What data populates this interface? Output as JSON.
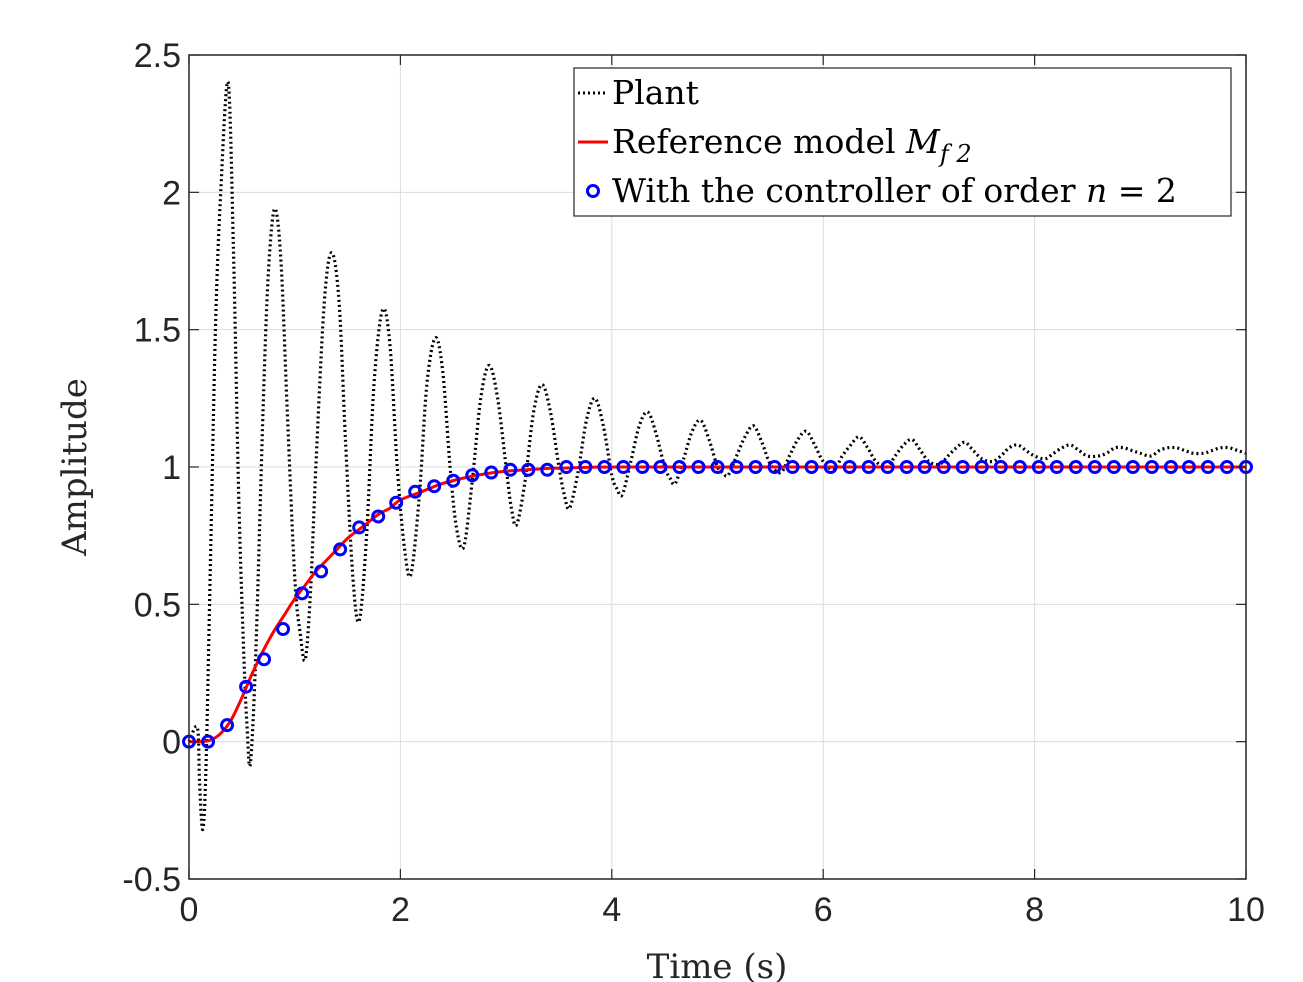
{
  "chart_data": {
    "type": "line",
    "title": "",
    "xlabel": "Time (s)",
    "ylabel": "Amplitude",
    "xlim": [
      0,
      10
    ],
    "ylim": [
      -0.5,
      2.5
    ],
    "xticks": [
      0,
      2,
      4,
      6,
      8,
      10
    ],
    "xtick_labels": [
      "0",
      "2",
      "4",
      "6",
      "8",
      "10"
    ],
    "yticks": [
      -0.5,
      0,
      0.5,
      1,
      1.5,
      2,
      2.5
    ],
    "ytick_labels": [
      "-0.5",
      "0",
      "0.5",
      "1",
      "1.5",
      "2",
      "2.5"
    ],
    "grid": true,
    "legend_position": "top-right",
    "series": [
      {
        "name": "Plant",
        "style": "dotted",
        "color": "#000000",
        "points": [
          [
            0,
            0
          ],
          [
            0.08,
            0.05
          ],
          [
            0.1,
            -0.15
          ],
          [
            0.13,
            -0.32
          ],
          [
            0.16,
            -0.1
          ],
          [
            0.2,
            0.6
          ],
          [
            0.25,
            1.5
          ],
          [
            0.3,
            2.0
          ],
          [
            0.37,
            2.4
          ],
          [
            0.42,
            1.8
          ],
          [
            0.47,
            0.9
          ],
          [
            0.52,
            0.3
          ],
          [
            0.55,
            0.05
          ],
          [
            0.58,
            -0.08
          ],
          [
            0.63,
            0.3
          ],
          [
            0.7,
            1.2
          ],
          [
            0.75,
            1.7
          ],
          [
            0.81,
            1.94
          ],
          [
            0.87,
            1.75
          ],
          [
            0.93,
            1.2
          ],
          [
            1.0,
            0.6
          ],
          [
            1.05,
            0.4
          ],
          [
            1.1,
            0.3
          ],
          [
            1.15,
            0.55
          ],
          [
            1.2,
            1.0
          ],
          [
            1.28,
            1.6
          ],
          [
            1.35,
            1.78
          ],
          [
            1.42,
            1.6
          ],
          [
            1.48,
            1.1
          ],
          [
            1.55,
            0.6
          ],
          [
            1.61,
            0.44
          ],
          [
            1.68,
            0.75
          ],
          [
            1.75,
            1.3
          ],
          [
            1.83,
            1.57
          ],
          [
            1.9,
            1.45
          ],
          [
            1.97,
            1.0
          ],
          [
            2.04,
            0.7
          ],
          [
            2.1,
            0.61
          ],
          [
            2.18,
            0.9
          ],
          [
            2.25,
            1.3
          ],
          [
            2.33,
            1.47
          ],
          [
            2.4,
            1.35
          ],
          [
            2.47,
            1.0
          ],
          [
            2.53,
            0.78
          ],
          [
            2.6,
            0.71
          ],
          [
            2.68,
            0.95
          ],
          [
            2.76,
            1.25
          ],
          [
            2.84,
            1.37
          ],
          [
            2.92,
            1.25
          ],
          [
            3.0,
            1.0
          ],
          [
            3.05,
            0.85
          ],
          [
            3.1,
            0.79
          ],
          [
            3.18,
            0.95
          ],
          [
            3.26,
            1.2
          ],
          [
            3.34,
            1.3
          ],
          [
            3.42,
            1.2
          ],
          [
            3.5,
            1.0
          ],
          [
            3.55,
            0.9
          ],
          [
            3.6,
            0.85
          ],
          [
            3.68,
            0.98
          ],
          [
            3.76,
            1.17
          ],
          [
            3.84,
            1.25
          ],
          [
            3.92,
            1.15
          ],
          [
            4.0,
            0.97
          ],
          [
            4.05,
            0.92
          ],
          [
            4.1,
            0.9
          ],
          [
            4.18,
            1.02
          ],
          [
            4.26,
            1.15
          ],
          [
            4.34,
            1.2
          ],
          [
            4.42,
            1.12
          ],
          [
            4.5,
            1.0
          ],
          [
            4.55,
            0.96
          ],
          [
            4.6,
            0.94
          ],
          [
            4.68,
            1.03
          ],
          [
            4.76,
            1.13
          ],
          [
            4.84,
            1.17
          ],
          [
            4.92,
            1.1
          ],
          [
            5.0,
            1.0
          ],
          [
            5.05,
            0.98
          ],
          [
            5.1,
            0.97
          ],
          [
            5.18,
            1.04
          ],
          [
            5.26,
            1.11
          ],
          [
            5.34,
            1.15
          ],
          [
            5.42,
            1.09
          ],
          [
            5.5,
            1.01
          ],
          [
            5.6,
            0.98
          ],
          [
            5.68,
            1.04
          ],
          [
            5.76,
            1.1
          ],
          [
            5.84,
            1.13
          ],
          [
            5.92,
            1.08
          ],
          [
            6.0,
            1.02
          ],
          [
            6.1,
            0.99
          ],
          [
            6.18,
            1.04
          ],
          [
            6.26,
            1.08
          ],
          [
            6.34,
            1.11
          ],
          [
            6.42,
            1.07
          ],
          [
            6.5,
            1.02
          ],
          [
            6.6,
            1.0
          ],
          [
            6.68,
            1.04
          ],
          [
            6.76,
            1.08
          ],
          [
            6.84,
            1.1
          ],
          [
            6.92,
            1.06
          ],
          [
            7.0,
            1.02
          ],
          [
            7.1,
            1.01
          ],
          [
            7.18,
            1.04
          ],
          [
            7.26,
            1.07
          ],
          [
            7.34,
            1.09
          ],
          [
            7.42,
            1.06
          ],
          [
            7.5,
            1.03
          ],
          [
            7.6,
            1.02
          ],
          [
            7.68,
            1.04
          ],
          [
            7.76,
            1.07
          ],
          [
            7.84,
            1.08
          ],
          [
            7.92,
            1.06
          ],
          [
            8.0,
            1.04
          ],
          [
            8.1,
            1.03
          ],
          [
            8.18,
            1.05
          ],
          [
            8.26,
            1.07
          ],
          [
            8.34,
            1.08
          ],
          [
            8.42,
            1.06
          ],
          [
            8.5,
            1.04
          ],
          [
            8.6,
            1.04
          ],
          [
            8.68,
            1.05
          ],
          [
            8.76,
            1.07
          ],
          [
            8.84,
            1.07
          ],
          [
            8.92,
            1.06
          ],
          [
            9.0,
            1.05
          ],
          [
            9.1,
            1.04
          ],
          [
            9.18,
            1.06
          ],
          [
            9.26,
            1.07
          ],
          [
            9.34,
            1.07
          ],
          [
            9.42,
            1.06
          ],
          [
            9.5,
            1.05
          ],
          [
            9.6,
            1.05
          ],
          [
            9.68,
            1.06
          ],
          [
            9.76,
            1.07
          ],
          [
            9.84,
            1.07
          ],
          [
            9.92,
            1.06
          ],
          [
            10.0,
            1.05
          ]
        ]
      },
      {
        "name": "Reference model M_{f2}",
        "style": "solid",
        "color": "#ff0000",
        "points": [
          [
            0,
            0
          ],
          [
            0.1,
            0.0
          ],
          [
            0.2,
            0.005
          ],
          [
            0.3,
            0.03
          ],
          [
            0.4,
            0.08
          ],
          [
            0.5,
            0.16
          ],
          [
            0.6,
            0.25
          ],
          [
            0.7,
            0.33
          ],
          [
            0.8,
            0.4
          ],
          [
            0.9,
            0.46
          ],
          [
            1.0,
            0.52
          ],
          [
            1.1,
            0.57
          ],
          [
            1.2,
            0.62
          ],
          [
            1.3,
            0.66
          ],
          [
            1.4,
            0.7
          ],
          [
            1.5,
            0.74
          ],
          [
            1.6,
            0.77
          ],
          [
            1.7,
            0.8
          ],
          [
            1.8,
            0.83
          ],
          [
            1.9,
            0.85
          ],
          [
            2.0,
            0.88
          ],
          [
            2.2,
            0.91
          ],
          [
            2.4,
            0.94
          ],
          [
            2.6,
            0.96
          ],
          [
            2.8,
            0.975
          ],
          [
            3.0,
            0.985
          ],
          [
            3.2,
            0.99
          ],
          [
            3.4,
            0.995
          ],
          [
            3.6,
            0.997
          ],
          [
            3.8,
            0.999
          ],
          [
            4.0,
            1.0
          ],
          [
            5.0,
            1.0
          ],
          [
            6.0,
            1.0
          ],
          [
            7.0,
            1.0
          ],
          [
            8.0,
            1.0
          ],
          [
            9.0,
            1.0
          ],
          [
            10.0,
            1.0
          ]
        ]
      },
      {
        "name": "With the controller of order n = 2",
        "style": "markers",
        "color": "#0000ff",
        "x": [
          0.0,
          0.18,
          0.36,
          0.54,
          0.71,
          0.89,
          1.07,
          1.25,
          1.43,
          1.61,
          1.79,
          1.96,
          2.14,
          2.32,
          2.5,
          2.68,
          2.86,
          3.04,
          3.21,
          3.39,
          3.57,
          3.75,
          3.93,
          4.11,
          4.29,
          4.46,
          4.64,
          4.82,
          5.0,
          5.18,
          5.36,
          5.54,
          5.71,
          5.89,
          6.07,
          6.25,
          6.43,
          6.61,
          6.79,
          6.96,
          7.14,
          7.32,
          7.5,
          7.68,
          7.86,
          8.04,
          8.21,
          8.39,
          8.57,
          8.75,
          8.93,
          9.11,
          9.29,
          9.46,
          9.64,
          9.82,
          10.0
        ],
        "y": [
          0.0,
          0.0,
          0.06,
          0.2,
          0.3,
          0.41,
          0.54,
          0.62,
          0.7,
          0.78,
          0.82,
          0.87,
          0.91,
          0.93,
          0.95,
          0.97,
          0.98,
          0.99,
          0.99,
          0.99,
          1.0,
          1.0,
          1.0,
          1.0,
          1.0,
          1.0,
          1.0,
          1.0,
          1.0,
          1.0,
          1.0,
          1.0,
          1.0,
          1.0,
          1.0,
          1.0,
          1.0,
          1.0,
          1.0,
          1.0,
          1.0,
          1.0,
          1.0,
          1.0,
          1.0,
          1.0,
          1.0,
          1.0,
          1.0,
          1.0,
          1.0,
          1.0,
          1.0,
          1.0,
          1.0,
          1.0,
          1.0
        ]
      }
    ],
    "legend": {
      "plant": "Plant",
      "reference_text": "Reference model ",
      "reference_math": "M",
      "reference_sub": "f 2",
      "controller_text": "With the controller of order ",
      "controller_math": "n",
      "controller_eq": " = 2"
    }
  }
}
